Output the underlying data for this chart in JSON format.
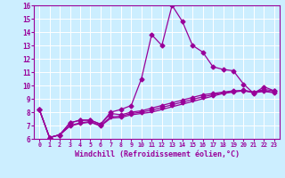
{
  "xlabel": "Windchill (Refroidissement éolien,°C)",
  "background_color": "#cceeff",
  "line_color": "#990099",
  "grid_color": "#ffffff",
  "xlim": [
    -0.5,
    23.5
  ],
  "ylim": [
    6,
    16
  ],
  "yticks": [
    6,
    7,
    8,
    9,
    10,
    11,
    12,
    13,
    14,
    15,
    16
  ],
  "xticks": [
    0,
    1,
    2,
    3,
    4,
    5,
    6,
    7,
    8,
    9,
    10,
    11,
    12,
    13,
    14,
    15,
    16,
    17,
    18,
    19,
    20,
    21,
    22,
    23
  ],
  "line1_x": [
    0,
    1,
    2,
    3,
    4,
    5,
    6,
    7,
    8,
    9,
    10,
    11,
    12,
    13,
    14,
    15,
    16,
    17,
    18,
    19,
    20,
    21,
    22,
    23
  ],
  "line1_y": [
    8.2,
    6.1,
    6.3,
    7.2,
    7.4,
    7.4,
    7.1,
    7.9,
    7.8,
    8.0,
    8.1,
    8.3,
    8.5,
    8.7,
    8.9,
    9.1,
    9.3,
    9.4,
    9.5,
    9.6,
    9.6,
    9.5,
    9.7,
    9.6
  ],
  "line2_x": [
    0,
    1,
    2,
    3,
    4,
    5,
    6,
    7,
    8,
    9,
    10,
    11,
    12,
    13,
    14,
    15,
    16,
    17,
    18,
    19,
    20,
    21,
    22,
    23
  ],
  "line2_y": [
    8.2,
    6.1,
    6.3,
    7.2,
    7.4,
    7.4,
    7.1,
    8.0,
    8.2,
    8.5,
    10.5,
    13.8,
    13.0,
    16.0,
    14.8,
    13.0,
    12.5,
    11.4,
    11.2,
    11.1,
    10.1,
    9.4,
    9.9,
    9.6
  ],
  "line3_x": [
    0,
    1,
    2,
    3,
    4,
    5,
    6,
    7,
    8,
    9,
    10,
    11,
    12,
    13,
    14,
    15,
    16,
    17,
    18,
    19,
    20,
    21,
    22,
    23
  ],
  "line3_y": [
    8.2,
    6.1,
    6.3,
    7.0,
    7.2,
    7.3,
    7.0,
    7.65,
    7.7,
    7.9,
    8.0,
    8.15,
    8.35,
    8.55,
    8.75,
    8.95,
    9.15,
    9.3,
    9.45,
    9.55,
    9.65,
    9.5,
    9.6,
    9.5
  ],
  "line4_x": [
    0,
    1,
    2,
    3,
    4,
    5,
    6,
    7,
    8,
    9,
    10,
    11,
    12,
    13,
    14,
    15,
    16,
    17,
    18,
    19,
    20,
    21,
    22,
    23
  ],
  "line4_y": [
    8.2,
    6.1,
    6.3,
    6.95,
    7.15,
    7.25,
    6.95,
    7.55,
    7.6,
    7.8,
    7.9,
    8.0,
    8.2,
    8.4,
    8.6,
    8.8,
    9.0,
    9.2,
    9.4,
    9.5,
    9.6,
    9.45,
    9.55,
    9.45
  ],
  "marker_size": 2.5,
  "line_width": 0.9
}
